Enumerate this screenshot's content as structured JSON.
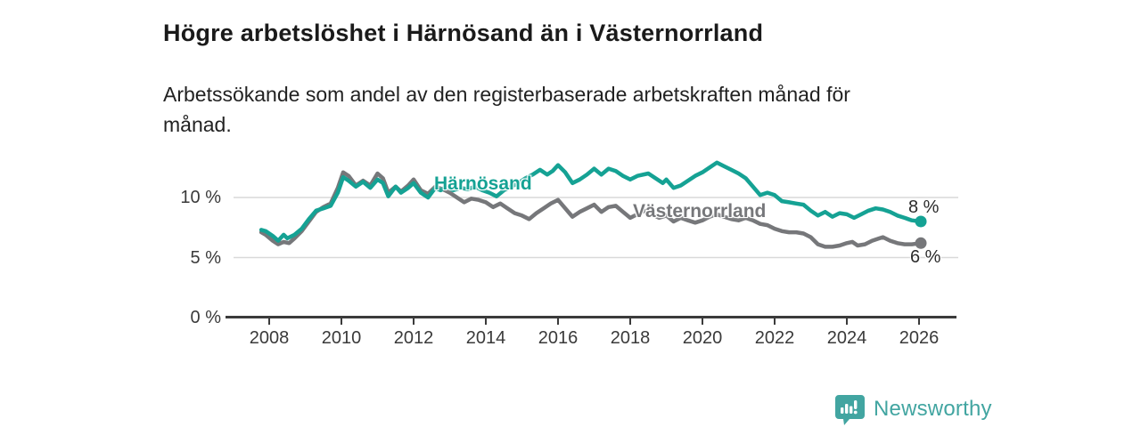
{
  "header": {
    "title": "Högre arbetslöshet i Härnösand än i Västernorrland",
    "subtitle_line1": "Arbetssökande som andel av den registerbaserade arbetskraften månad för",
    "subtitle_line2": "månad."
  },
  "footer": {
    "brand": "Newsworthy",
    "brand_color": "#42a5a1"
  },
  "chart_data": {
    "type": "line",
    "title": "Högre arbetslöshet i Härnösand än i Västernorrland",
    "subtitle": "Arbetssökande som andel av den registerbaserade arbetskraften månad för månad.",
    "unit": "%",
    "xlabel": "",
    "ylabel": "",
    "xlim": [
      2007.6,
      2026.4
    ],
    "ylim": [
      0,
      13.5
    ],
    "grid": "horizontal",
    "grid_color": "#d9d9d9",
    "axis_color": "#3b3b3b",
    "legend": "inline-labels",
    "xticks": [
      {
        "value": 2008,
        "label": "2008"
      },
      {
        "value": 2010,
        "label": "2010"
      },
      {
        "value": 2012,
        "label": "2012"
      },
      {
        "value": 2014,
        "label": "2014"
      },
      {
        "value": 2016,
        "label": "2016"
      },
      {
        "value": 2018,
        "label": "2018"
      },
      {
        "value": 2020,
        "label": "2020"
      },
      {
        "value": 2022,
        "label": "2022"
      },
      {
        "value": 2024,
        "label": "2024"
      },
      {
        "value": 2026,
        "label": "2026"
      }
    ],
    "yticks": [
      {
        "value": 0,
        "label": "0 %"
      },
      {
        "value": 5,
        "label": "5 %"
      },
      {
        "value": 10,
        "label": "10 %"
      }
    ],
    "series": [
      {
        "name": "Västernorrland",
        "color": "#76777a",
        "end_label": "6 %",
        "end_value": 6.2,
        "points": [
          [
            2007.78,
            7.1
          ],
          [
            2007.9,
            6.9
          ],
          [
            2008.1,
            6.4
          ],
          [
            2008.25,
            6.1
          ],
          [
            2008.4,
            6.3
          ],
          [
            2008.55,
            6.2
          ],
          [
            2008.7,
            6.6
          ],
          [
            2008.9,
            7.2
          ],
          [
            2009.1,
            8.0
          ],
          [
            2009.3,
            8.8
          ],
          [
            2009.5,
            9.2
          ],
          [
            2009.7,
            9.5
          ],
          [
            2009.9,
            10.8
          ],
          [
            2010.05,
            12.1
          ],
          [
            2010.2,
            11.8
          ],
          [
            2010.4,
            11.0
          ],
          [
            2010.6,
            11.4
          ],
          [
            2010.8,
            11.0
          ],
          [
            2011.0,
            12.0
          ],
          [
            2011.15,
            11.6
          ],
          [
            2011.3,
            10.4
          ],
          [
            2011.5,
            10.9
          ],
          [
            2011.65,
            10.5
          ],
          [
            2011.85,
            11.0
          ],
          [
            2012.0,
            11.5
          ],
          [
            2012.2,
            10.6
          ],
          [
            2012.4,
            10.3
          ],
          [
            2012.6,
            10.9
          ],
          [
            2012.8,
            10.7
          ],
          [
            2013.0,
            10.4
          ],
          [
            2013.2,
            10.0
          ],
          [
            2013.4,
            9.6
          ],
          [
            2013.6,
            9.9
          ],
          [
            2013.8,
            9.8
          ],
          [
            2014.0,
            9.6
          ],
          [
            2014.2,
            9.2
          ],
          [
            2014.4,
            9.5
          ],
          [
            2014.6,
            9.1
          ],
          [
            2014.8,
            8.7
          ],
          [
            2015.0,
            8.5
          ],
          [
            2015.2,
            8.2
          ],
          [
            2015.4,
            8.7
          ],
          [
            2015.6,
            9.1
          ],
          [
            2015.8,
            9.5
          ],
          [
            2016.0,
            9.8
          ],
          [
            2016.2,
            9.1
          ],
          [
            2016.4,
            8.4
          ],
          [
            2016.6,
            8.8
          ],
          [
            2016.8,
            9.1
          ],
          [
            2017.0,
            9.4
          ],
          [
            2017.2,
            8.8
          ],
          [
            2017.4,
            9.2
          ],
          [
            2017.6,
            9.3
          ],
          [
            2017.8,
            8.8
          ],
          [
            2018.0,
            8.3
          ],
          [
            2018.2,
            8.6
          ],
          [
            2018.4,
            8.9
          ],
          [
            2018.6,
            8.6
          ],
          [
            2018.8,
            8.3
          ],
          [
            2019.0,
            8.5
          ],
          [
            2019.2,
            8.0
          ],
          [
            2019.4,
            8.3
          ],
          [
            2019.6,
            8.1
          ],
          [
            2019.8,
            7.9
          ],
          [
            2020.0,
            8.1
          ],
          [
            2020.2,
            8.4
          ],
          [
            2020.4,
            8.6
          ],
          [
            2020.6,
            8.4
          ],
          [
            2020.8,
            8.2
          ],
          [
            2021.0,
            8.1
          ],
          [
            2021.2,
            8.3
          ],
          [
            2021.4,
            8.1
          ],
          [
            2021.6,
            7.8
          ],
          [
            2021.8,
            7.7
          ],
          [
            2022.0,
            7.4
          ],
          [
            2022.2,
            7.2
          ],
          [
            2022.4,
            7.1
          ],
          [
            2022.6,
            7.1
          ],
          [
            2022.8,
            7.0
          ],
          [
            2023.0,
            6.7
          ],
          [
            2023.2,
            6.1
          ],
          [
            2023.4,
            5.9
          ],
          [
            2023.6,
            5.9
          ],
          [
            2023.8,
            6.0
          ],
          [
            2024.0,
            6.2
          ],
          [
            2024.15,
            6.3
          ],
          [
            2024.3,
            6.0
          ],
          [
            2024.5,
            6.1
          ],
          [
            2024.7,
            6.4
          ],
          [
            2024.9,
            6.6
          ],
          [
            2025.0,
            6.7
          ],
          [
            2025.2,
            6.4
          ],
          [
            2025.4,
            6.2
          ],
          [
            2025.6,
            6.1
          ],
          [
            2025.8,
            6.1
          ],
          [
            2026.05,
            6.2
          ]
        ]
      },
      {
        "name": "Härnösand",
        "color": "#15a294",
        "end_label": "8 %",
        "end_value": 8.0,
        "points": [
          [
            2007.78,
            7.3
          ],
          [
            2007.9,
            7.2
          ],
          [
            2008.1,
            6.8
          ],
          [
            2008.25,
            6.4
          ],
          [
            2008.4,
            6.9
          ],
          [
            2008.5,
            6.6
          ],
          [
            2008.7,
            6.9
          ],
          [
            2008.9,
            7.4
          ],
          [
            2009.1,
            8.2
          ],
          [
            2009.3,
            8.9
          ],
          [
            2009.5,
            9.1
          ],
          [
            2009.7,
            9.3
          ],
          [
            2009.9,
            10.4
          ],
          [
            2010.05,
            11.7
          ],
          [
            2010.2,
            11.4
          ],
          [
            2010.4,
            10.9
          ],
          [
            2010.6,
            11.3
          ],
          [
            2010.8,
            10.8
          ],
          [
            2011.0,
            11.5
          ],
          [
            2011.15,
            11.2
          ],
          [
            2011.3,
            10.1
          ],
          [
            2011.5,
            10.9
          ],
          [
            2011.65,
            10.4
          ],
          [
            2011.85,
            10.8
          ],
          [
            2012.0,
            11.2
          ],
          [
            2012.2,
            10.4
          ],
          [
            2012.4,
            10.0
          ],
          [
            2012.6,
            10.8
          ],
          [
            2012.75,
            10.6
          ],
          [
            2012.9,
            10.9
          ],
          [
            2013.1,
            10.6
          ],
          [
            2013.3,
            10.8
          ],
          [
            2013.5,
            10.7
          ],
          [
            2013.7,
            10.9
          ],
          [
            2013.9,
            10.6
          ],
          [
            2014.1,
            10.4
          ],
          [
            2014.3,
            10.1
          ],
          [
            2014.5,
            10.6
          ],
          [
            2014.7,
            10.9
          ],
          [
            2014.9,
            11.2
          ],
          [
            2015.1,
            11.6
          ],
          [
            2015.3,
            11.9
          ],
          [
            2015.5,
            12.3
          ],
          [
            2015.7,
            11.9
          ],
          [
            2015.85,
            12.2
          ],
          [
            2016.0,
            12.7
          ],
          [
            2016.2,
            12.1
          ],
          [
            2016.4,
            11.2
          ],
          [
            2016.6,
            11.5
          ],
          [
            2016.8,
            11.9
          ],
          [
            2017.0,
            12.4
          ],
          [
            2017.2,
            11.9
          ],
          [
            2017.4,
            12.4
          ],
          [
            2017.6,
            12.2
          ],
          [
            2017.8,
            11.8
          ],
          [
            2018.0,
            11.5
          ],
          [
            2018.2,
            11.8
          ],
          [
            2018.5,
            12.0
          ],
          [
            2018.7,
            11.6
          ],
          [
            2018.9,
            11.2
          ],
          [
            2019.0,
            11.5
          ],
          [
            2019.2,
            10.8
          ],
          [
            2019.4,
            11.0
          ],
          [
            2019.6,
            11.4
          ],
          [
            2019.8,
            11.8
          ],
          [
            2020.0,
            12.1
          ],
          [
            2020.2,
            12.5
          ],
          [
            2020.4,
            12.9
          ],
          [
            2020.6,
            12.6
          ],
          [
            2020.8,
            12.3
          ],
          [
            2021.0,
            12.0
          ],
          [
            2021.2,
            11.6
          ],
          [
            2021.4,
            10.9
          ],
          [
            2021.6,
            10.2
          ],
          [
            2021.8,
            10.4
          ],
          [
            2022.0,
            10.2
          ],
          [
            2022.2,
            9.7
          ],
          [
            2022.4,
            9.6
          ],
          [
            2022.6,
            9.5
          ],
          [
            2022.8,
            9.4
          ],
          [
            2023.0,
            8.9
          ],
          [
            2023.2,
            8.5
          ],
          [
            2023.4,
            8.8
          ],
          [
            2023.6,
            8.4
          ],
          [
            2023.8,
            8.7
          ],
          [
            2024.0,
            8.6
          ],
          [
            2024.2,
            8.3
          ],
          [
            2024.4,
            8.6
          ],
          [
            2024.6,
            8.9
          ],
          [
            2024.8,
            9.1
          ],
          [
            2025.0,
            9.0
          ],
          [
            2025.2,
            8.8
          ],
          [
            2025.4,
            8.5
          ],
          [
            2025.6,
            8.3
          ],
          [
            2025.8,
            8.1
          ],
          [
            2026.05,
            8.0
          ]
        ]
      }
    ]
  }
}
